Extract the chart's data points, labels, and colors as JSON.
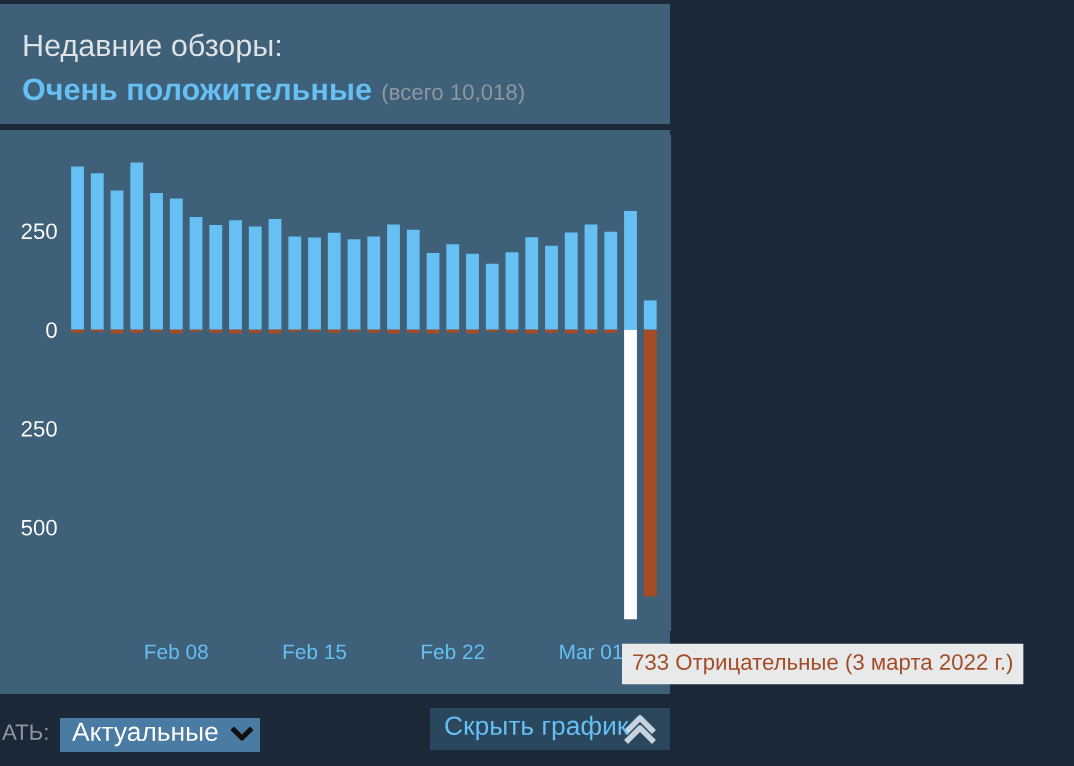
{
  "chart_data": {
    "type": "bar",
    "title": "Недавние обзоры:",
    "subtitle": "Очень положительные",
    "annotations": [
      "(всего 10,018)",
      "733 Отрицательные (3 марта 2022 г.)",
      "АТЬ:",
      "Актуальные",
      "Скрыть график"
    ],
    "x": [
      "2022-02-03",
      "2022-02-04",
      "2022-02-05",
      "2022-02-06",
      "2022-02-07",
      "2022-02-08",
      "2022-02-09",
      "2022-02-10",
      "2022-02-11",
      "2022-02-12",
      "2022-02-13",
      "2022-02-14",
      "2022-02-15",
      "2022-02-16",
      "2022-02-17",
      "2022-02-18",
      "2022-02-19",
      "2022-02-20",
      "2022-02-21",
      "2022-02-22",
      "2022-02-23",
      "2022-02-24",
      "2022-02-25",
      "2022-02-26",
      "2022-02-27",
      "2022-02-28",
      "2022-03-01",
      "2022-03-02",
      "2022-03-03",
      "2022-03-04"
    ],
    "series": [
      {
        "color": "#66c0f4",
        "values": [
          413,
          396,
          352,
          423,
          346,
          332,
          285,
          265,
          277,
          261,
          280,
          236,
          233,
          245,
          229,
          236,
          266,
          253,
          194,
          216,
          192,
          167,
          196,
          234,
          212,
          246,
          266,
          248,
          300,
          74
        ]
      },
      {
        "color": "#a34c25",
        "colors": [
          "#a34c25",
          "#a34c25",
          "#a34c25",
          "#a34c25",
          "#a34c25",
          "#a34c25",
          "#a34c25",
          "#a34c25",
          "#a34c25",
          "#a34c25",
          "#a34c25",
          "#a34c25",
          "#a34c25",
          "#a34c25",
          "#a34c25",
          "#a34c25",
          "#a34c25",
          "#a34c25",
          "#a34c25",
          "#a34c25",
          "#a34c25",
          "#a34c25",
          "#a34c25",
          "#a34c25",
          "#a34c25",
          "#a34c25",
          "#a34c25",
          "#a34c25",
          "#ffffff",
          "#a34c25"
        ],
        "values": [
          -8,
          -5,
          -10,
          -8,
          -5,
          -10,
          -5,
          -8,
          -10,
          -8,
          -10,
          -5,
          -5,
          -8,
          -5,
          -8,
          -10,
          -8,
          -10,
          -8,
          -10,
          -5,
          -8,
          -10,
          -8,
          -10,
          -10,
          -8,
          -733,
          -675
        ]
      }
    ],
    "ylim": [
      -760,
      490
    ],
    "yticks": [
      {
        "value": -500,
        "label": "500"
      },
      {
        "value": -250,
        "label": "250"
      },
      0,
      250
    ],
    "xticks": [
      {
        "value": "2022-02-08",
        "label": "Feb 08"
      },
      {
        "value": "2022-02-15",
        "label": "Feb 15"
      },
      {
        "value": "2022-02-22",
        "label": "Feb 22"
      },
      {
        "value": "2022-03-01",
        "label": "Mar 01"
      }
    ],
    "xlim": [
      "2022-02-02T10:00",
      "2022-03-05T00:00"
    ],
    "grid": false
  }
}
